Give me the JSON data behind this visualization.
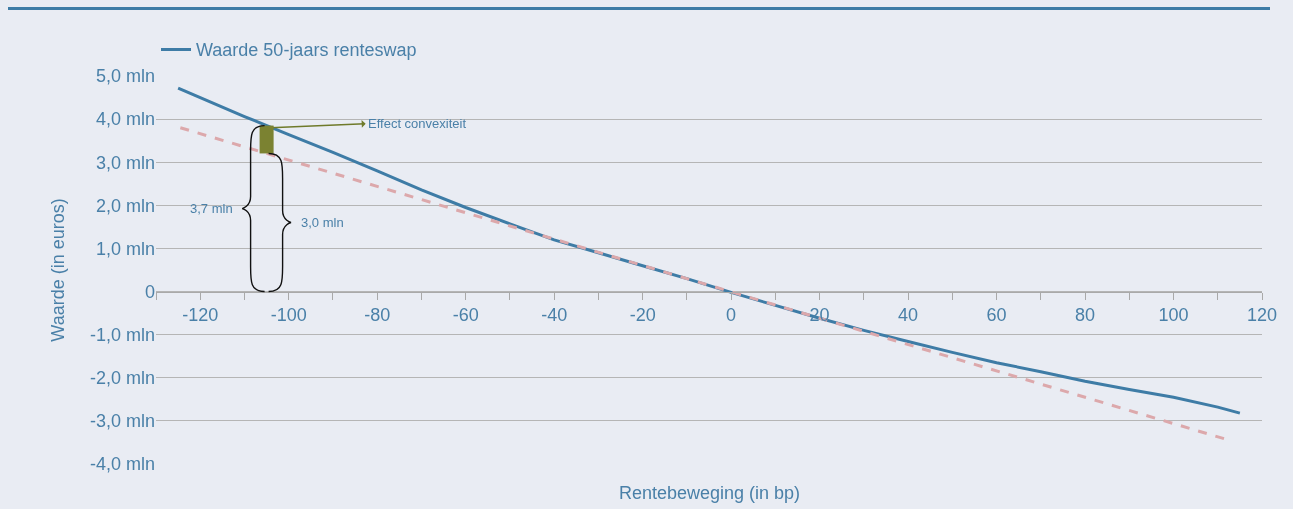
{
  "chart_data": {
    "type": "line",
    "xlabel": "Rentebeweging (in bp)",
    "ylabel": "Waarde (in euros)",
    "xlim": [
      -130,
      120
    ],
    "xticks": [
      {
        "value": -130,
        "label": null
      },
      -120,
      {
        "value": -110,
        "label": null
      },
      -100,
      {
        "value": -90,
        "label": null
      },
      -80,
      {
        "value": -70,
        "label": null
      },
      -60,
      {
        "value": -50,
        "label": null
      },
      -40,
      {
        "value": -30,
        "label": null
      },
      -20,
      {
        "value": -10,
        "label": null
      },
      0,
      {
        "value": 10,
        "label": null
      },
      20,
      {
        "value": 30,
        "label": null
      },
      40,
      {
        "value": 50,
        "label": null
      },
      60,
      {
        "value": 70,
        "label": null
      },
      80,
      {
        "value": 90,
        "label": null
      },
      100,
      {
        "value": 110,
        "label": null
      },
      120
    ],
    "ylim": [
      -4,
      5
    ],
    "yticks": [
      {
        "value": -4,
        "label": "-4,0 mln"
      },
      {
        "value": -3,
        "label": "-3,0 mln"
      },
      {
        "value": -2,
        "label": "-2,0 mln"
      },
      {
        "value": -1,
        "label": "-1,0 mln"
      },
      0,
      {
        "value": 1,
        "label": "1,0 mln"
      },
      {
        "value": 2,
        "label": "2,0 mln"
      },
      {
        "value": 3,
        "label": "3,0 mln"
      },
      {
        "value": 4,
        "label": "4,0 mln"
      },
      {
        "value": 5,
        "label": "5,0 mln"
      }
    ],
    "grid": "y",
    "legend": "top left",
    "line_style": "solid",
    "series": [
      {
        "name": "Waarde 50-jaars renteswap",
        "color": "#3e7ca6",
        "x": [
          -125,
          -120,
          -110,
          -100,
          -90,
          -80,
          -70,
          -60,
          -50,
          -40,
          -30,
          -20,
          -10,
          0,
          10,
          20,
          30,
          40,
          50,
          60,
          70,
          80,
          90,
          100,
          110,
          115
        ],
        "values": [
          4.72,
          4.5,
          4.06,
          3.64,
          3.23,
          2.8,
          2.36,
          1.95,
          1.57,
          1.2,
          0.9,
          0.6,
          0.3,
          -0.02,
          -0.32,
          -0.62,
          -0.9,
          -1.16,
          -1.41,
          -1.65,
          -1.86,
          -2.08,
          -2.27,
          -2.45,
          -2.68,
          -2.82
        ]
      },
      {
        "color": "#dca8ab",
        "line_style": "dashed",
        "x": [
          -124.5,
          112
        ],
        "values": [
          3.8,
          -3.43
        ]
      }
    ],
    "annotations": [
      {
        "text": "Effect convexiteit",
        "x": -105,
        "y": 3.8
      },
      "3,7 mln",
      "3,0 mln"
    ]
  }
}
